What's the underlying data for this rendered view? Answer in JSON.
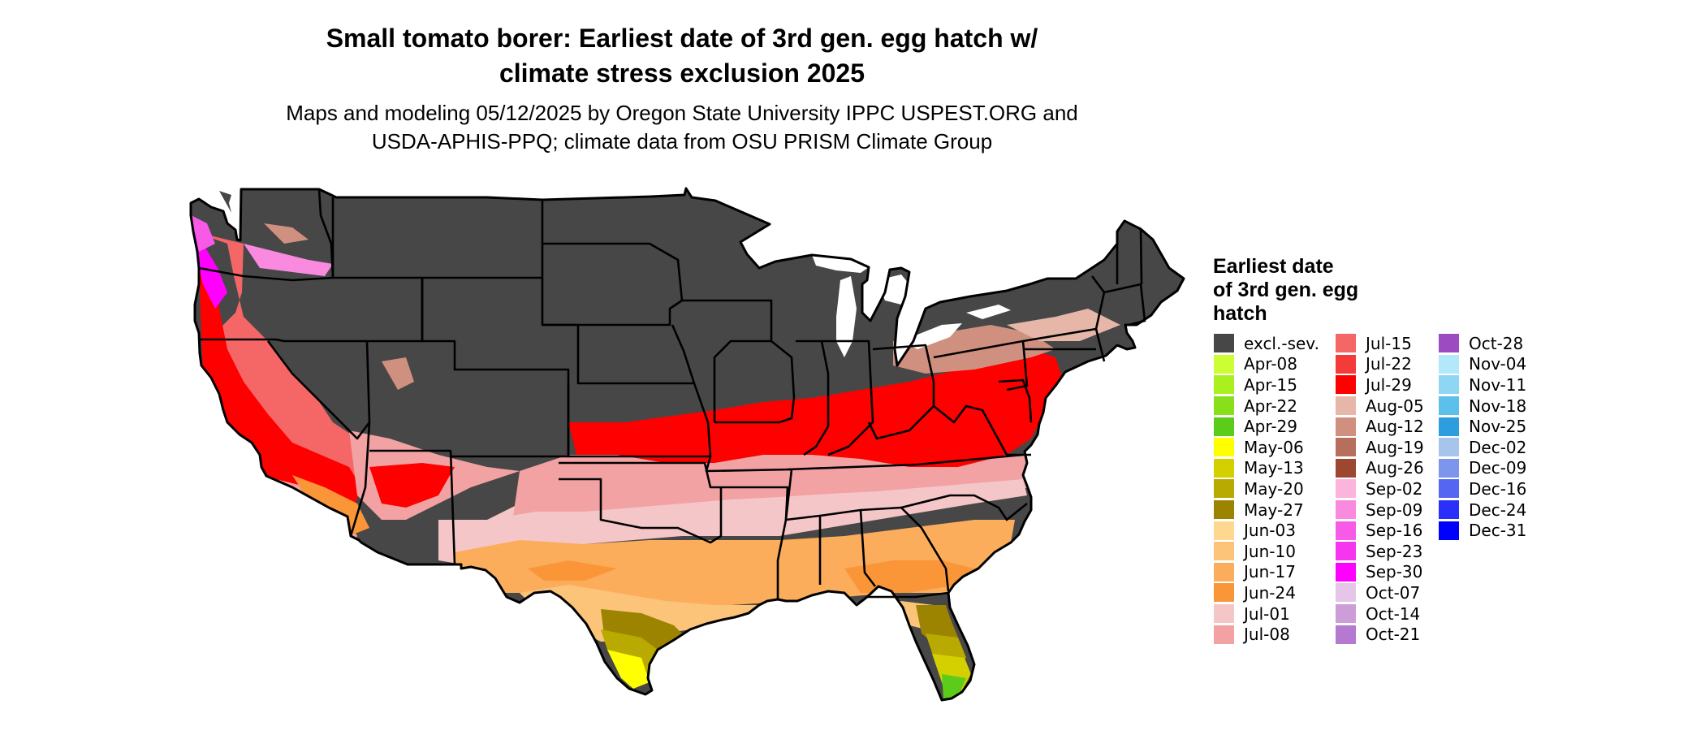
{
  "title_line1": "Small tomato borer: Earliest date of 3rd gen. egg hatch w/",
  "title_line2": "climate stress exclusion 2025",
  "subtitle_line1": "Maps and modeling 05/12/2025 by Oregon State University IPPC USPEST.ORG and",
  "subtitle_line2": "USDA-APHIS-PPQ; climate data from OSU PRISM Climate Group",
  "legend": {
    "title_line1": "Earliest date",
    "title_line2": "of 3rd gen. egg",
    "title_line3": "hatch",
    "columns": [
      [
        {
          "label": "excl.-sev.",
          "color": "#474747"
        },
        {
          "label": "Apr-08",
          "color": "#ccff33"
        },
        {
          "label": "Apr-15",
          "color": "#aaf01e"
        },
        {
          "label": "Apr-22",
          "color": "#88e01a"
        },
        {
          "label": "Apr-29",
          "color": "#5ccc1a"
        },
        {
          "label": "May-06",
          "color": "#ffff00"
        },
        {
          "label": "May-13",
          "color": "#d4d000"
        },
        {
          "label": "May-20",
          "color": "#b8aa00"
        },
        {
          "label": "May-27",
          "color": "#9c8400"
        },
        {
          "label": "Jun-03",
          "color": "#fdd88e"
        },
        {
          "label": "Jun-10",
          "color": "#fcc478"
        },
        {
          "label": "Jun-17",
          "color": "#fbad5c"
        },
        {
          "label": "Jun-24",
          "color": "#fa9638"
        },
        {
          "label": "Jul-01",
          "color": "#f5c6c8"
        },
        {
          "label": "Jul-08",
          "color": "#f2a2a3"
        }
      ],
      [
        {
          "label": "Jul-15",
          "color": "#f56666"
        },
        {
          "label": "Jul-22",
          "color": "#f53a3a"
        },
        {
          "label": "Jul-29",
          "color": "#ff0000"
        },
        {
          "label": "Aug-05",
          "color": "#e6b6a8"
        },
        {
          "label": "Aug-12",
          "color": "#d09080"
        },
        {
          "label": "Aug-19",
          "color": "#b86e5c"
        },
        {
          "label": "Aug-26",
          "color": "#9c4830"
        },
        {
          "label": "Sep-02",
          "color": "#fbb4dc"
        },
        {
          "label": "Sep-09",
          "color": "#f98ae0"
        },
        {
          "label": "Sep-16",
          "color": "#f65ae6"
        },
        {
          "label": "Sep-23",
          "color": "#f536ee"
        },
        {
          "label": "Sep-30",
          "color": "#ff00ff"
        },
        {
          "label": "Oct-07",
          "color": "#e6c6e8"
        },
        {
          "label": "Oct-14",
          "color": "#cc9ed8"
        },
        {
          "label": "Oct-21",
          "color": "#b37ad0"
        }
      ],
      [
        {
          "label": "Oct-28",
          "color": "#9c4cc0"
        },
        {
          "label": "Nov-04",
          "color": "#b2e8fa"
        },
        {
          "label": "Nov-11",
          "color": "#8ed6f2"
        },
        {
          "label": "Nov-18",
          "color": "#5cc0ea"
        },
        {
          "label": "Nov-25",
          "color": "#2c9ee0"
        },
        {
          "label": "Dec-02",
          "color": "#a6c4ec"
        },
        {
          "label": "Dec-09",
          "color": "#7c96ec"
        },
        {
          "label": "Dec-16",
          "color": "#5466f2"
        },
        {
          "label": "Dec-24",
          "color": "#2a30fa"
        },
        {
          "label": "Dec-31",
          "color": "#0000ff"
        }
      ]
    ]
  }
}
